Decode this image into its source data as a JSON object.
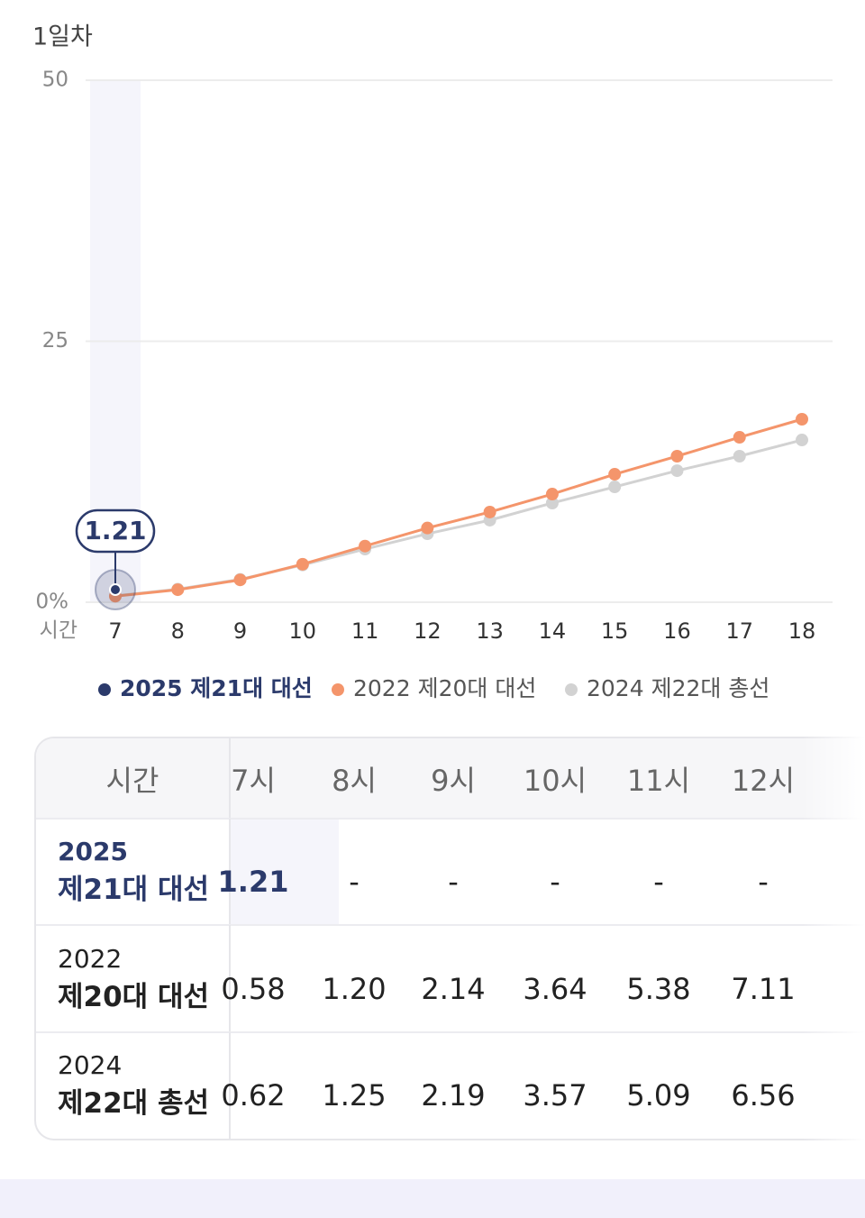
{
  "chart_data": {
    "type": "line",
    "title": "1일차",
    "x_label": "시간",
    "categories": [
      "7",
      "8",
      "9",
      "10",
      "11",
      "12",
      "13",
      "14",
      "15",
      "16",
      "17",
      "18"
    ],
    "series": [
      {
        "name": "2025 제21대 대선",
        "color": "#2b3a6b",
        "values": [
          1.21,
          null,
          null,
          null,
          null,
          null,
          null,
          null,
          null,
          null,
          null,
          null
        ]
      },
      {
        "name": "2022 제20대 대선",
        "color": "#f4956b",
        "values": [
          0.58,
          1.2,
          2.14,
          3.64,
          5.38,
          7.11,
          8.64,
          10.36,
          12.26,
          13.99,
          15.8,
          17.53
        ]
      },
      {
        "name": "2024 제22대 총선",
        "color": "#d2d2d2",
        "values": [
          0.62,
          1.25,
          2.19,
          3.57,
          5.09,
          6.56,
          7.86,
          9.5,
          11.05,
          12.6,
          13.99,
          15.54
        ]
      }
    ],
    "ylim": [
      0,
      50
    ],
    "yticks": [
      {
        "value": 0,
        "label": "0%"
      },
      25,
      50
    ],
    "grid": true
  },
  "table": {
    "header": [
      "시간",
      "7시",
      "8시",
      "9시",
      "10시",
      "11시",
      "12시"
    ],
    "rows": [
      {
        "label": [
          "2025",
          "제21대 대선"
        ],
        "cells": [
          "1.21",
          "-",
          "-",
          "-",
          "-",
          "-"
        ]
      },
      {
        "label": [
          "2022",
          "제20대 대선"
        ],
        "cells": [
          "0.58",
          "1.20",
          "2.14",
          "3.64",
          "5.38",
          "7.11"
        ]
      },
      {
        "label": [
          "2024",
          "제22대 총선"
        ],
        "cells": [
          "0.62",
          "1.25",
          "2.19",
          "3.57",
          "5.09",
          "6.56"
        ]
      }
    ]
  }
}
